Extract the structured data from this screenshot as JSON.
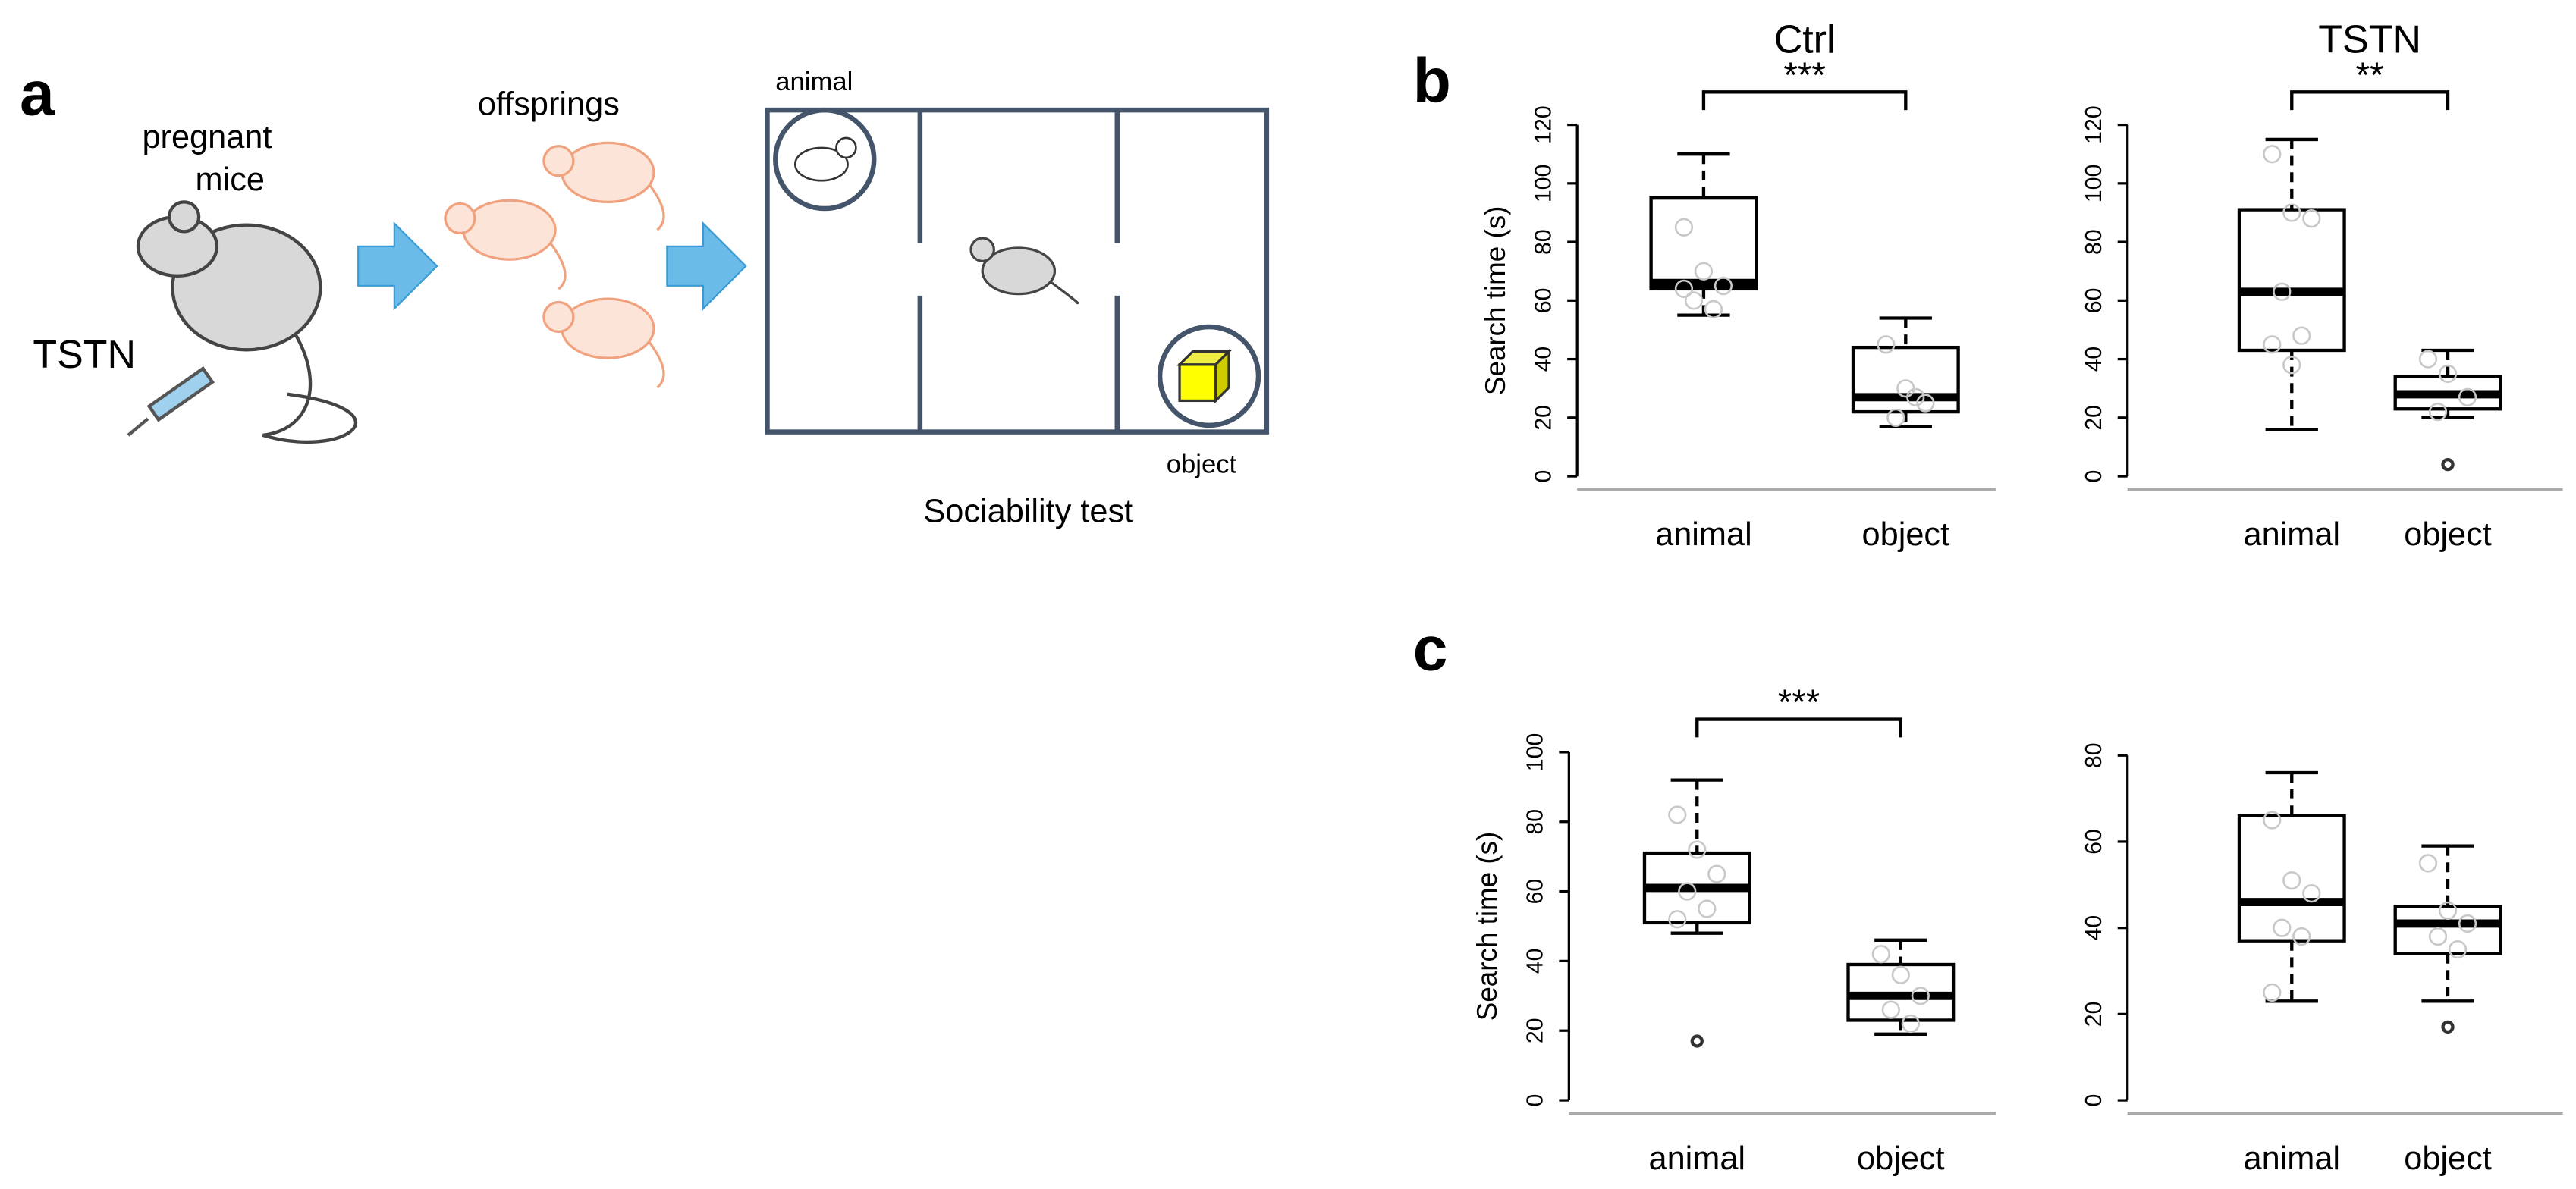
{
  "panel_labels": {
    "a": "a",
    "b": "b",
    "c": "c"
  },
  "diagram": {
    "pregnant_line1": "pregnant",
    "pregnant_line2": "mice",
    "drug": "TSTN",
    "offspring": "offsprings",
    "chamber_animal": "animal",
    "chamber_object": "object",
    "test_name": "Sociability test"
  },
  "chart_data": [
    {
      "type": "box",
      "title": "Ctrl",
      "y_label": "Search time (s)",
      "categories": [
        "animal",
        "object"
      ],
      "color": "#000000",
      "significance": "***",
      "ylim": [
        0,
        120
      ],
      "yticks": [
        0,
        20,
        40,
        60,
        80,
        100,
        120
      ],
      "boxes": [
        {
          "whisker_low": 55,
          "q1": 64,
          "median": 66,
          "q3": 95,
          "whisker_high": 110,
          "outliers": [],
          "points": [
            85,
            70,
            65,
            60,
            57,
            64
          ]
        },
        {
          "whisker_low": 17,
          "q1": 22,
          "median": 27,
          "q3": 44,
          "whisker_high": 54,
          "outliers": [],
          "points": [
            45,
            30,
            25,
            20,
            27
          ]
        }
      ]
    },
    {
      "type": "box",
      "title": "TSTN",
      "categories": [
        "animal",
        "object"
      ],
      "color": "#000000",
      "significance": "**",
      "ylim": [
        0,
        120
      ],
      "yticks": [
        0,
        20,
        40,
        60,
        80,
        100,
        120
      ],
      "boxes": [
        {
          "whisker_low": 16,
          "q1": 43,
          "median": 63,
          "q3": 91,
          "whisker_high": 115,
          "outliers": [],
          "points": [
            110,
            90,
            88,
            63,
            48,
            45,
            38
          ]
        },
        {
          "whisker_low": 20,
          "q1": 23,
          "median": 28,
          "q3": 34,
          "whisker_high": 43,
          "outliers": [
            4
          ],
          "points": [
            40,
            35,
            27,
            22
          ]
        }
      ]
    },
    {
      "type": "box",
      "y_label": "Search time (s)",
      "categories": [
        "animal",
        "object"
      ],
      "color": "#000000",
      "significance": "***",
      "ylim": [
        0,
        100
      ],
      "yticks": [
        0,
        20,
        40,
        60,
        80,
        100
      ],
      "boxes": [
        {
          "whisker_low": 48,
          "q1": 51,
          "median": 61,
          "q3": 71,
          "whisker_high": 92,
          "outliers": [
            17
          ],
          "points": [
            82,
            72,
            65,
            60,
            55,
            52
          ]
        },
        {
          "whisker_low": 19,
          "q1": 23,
          "median": 30,
          "q3": 39,
          "whisker_high": 46,
          "outliers": [],
          "points": [
            42,
            36,
            30,
            26,
            22
          ]
        }
      ]
    },
    {
      "type": "box",
      "categories": [
        "animal",
        "object"
      ],
      "color": "#000000",
      "ylim": [
        0,
        80
      ],
      "yticks": [
        0,
        20,
        40,
        60,
        80
      ],
      "boxes": [
        {
          "whisker_low": 23,
          "q1": 37,
          "median": 46,
          "q3": 66,
          "whisker_high": 76,
          "outliers": [],
          "points": [
            65,
            51,
            48,
            40,
            38,
            25
          ]
        },
        {
          "whisker_low": 23,
          "q1": 34,
          "median": 41,
          "q3": 45,
          "whisker_high": 59,
          "outliers": [
            17
          ],
          "points": [
            55,
            44,
            41,
            38,
            35
          ]
        }
      ]
    }
  ]
}
